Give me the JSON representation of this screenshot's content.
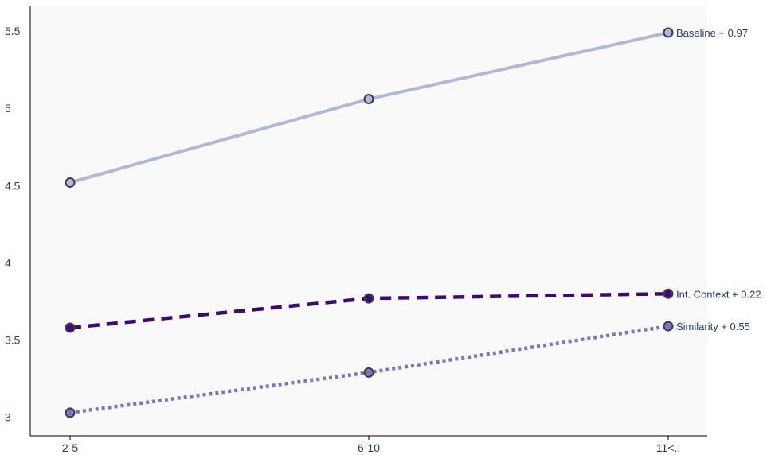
{
  "chart_data": {
    "type": "line",
    "title": "",
    "xlabel": "",
    "ylabel": "",
    "categories": [
      "2-5",
      "6-10",
      "11<.."
    ],
    "ylim": [
      2.88,
      5.66
    ],
    "yticks": [
      3,
      3.5,
      4,
      4.5,
      5,
      5.5
    ],
    "ytick_labels": [
      "3",
      "3.5",
      "4",
      "4.5",
      "5",
      "5.5"
    ],
    "grid": false,
    "legend": "none",
    "series": [
      {
        "label": "Baseline + 0.97",
        "values": [
          4.52,
          5.06,
          5.49
        ],
        "color": "#b3b6d8",
        "marker_color": "#b3b6d8",
        "dash": "solid"
      },
      {
        "label": "Int. Context + 0.22",
        "values": [
          3.58,
          3.77,
          3.8
        ],
        "color": "#3c0a70",
        "marker_color": "#3c0a70",
        "dash": "dash"
      },
      {
        "label": "Similarity + 0.55",
        "values": [
          3.03,
          3.29,
          3.59
        ],
        "color": "#7a78b8",
        "marker_color": "#7a78b8",
        "dash": "dot"
      }
    ]
  }
}
